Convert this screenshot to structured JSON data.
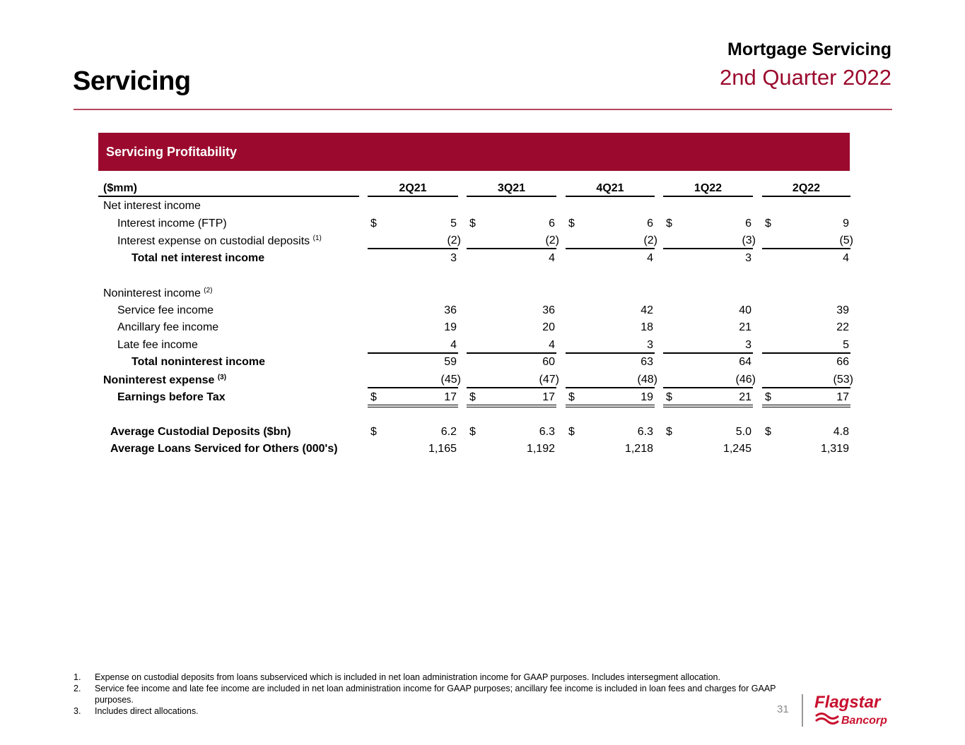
{
  "header": {
    "title": "Servicing",
    "section": "Mortgage Servicing",
    "period": "2nd Quarter 2022"
  },
  "banner": {
    "title": "Servicing Profitability"
  },
  "table": {
    "unit_label": "($mm)",
    "columns": [
      "2Q21",
      "3Q21",
      "4Q21",
      "1Q22",
      "2Q22"
    ],
    "rows": [
      {
        "label": "Net interest income",
        "indent": 0,
        "bold": false,
        "values": null
      },
      {
        "label": "Interest income (FTP)",
        "indent": 1,
        "bold": false,
        "dollar": true,
        "values": [
          "5",
          "6",
          "6",
          "6",
          "9"
        ]
      },
      {
        "label": "Interest expense on custodial deposits",
        "sup": "(1)",
        "indent": 1,
        "bold": false,
        "values": [
          "(2)",
          "(2)",
          "(2)",
          "(3)",
          "(5)"
        ],
        "underline": true
      },
      {
        "label": "Total net interest income",
        "indent": 2,
        "bold": true,
        "values": [
          "3",
          "4",
          "4",
          "3",
          "4"
        ]
      },
      {
        "label": "",
        "indent": 0,
        "values": null
      },
      {
        "label": "Noninterest income",
        "sup": "(2)",
        "indent": 0,
        "bold": false,
        "values": null
      },
      {
        "label": "Service fee income",
        "indent": 1,
        "bold": false,
        "values": [
          "36",
          "36",
          "42",
          "40",
          "39"
        ]
      },
      {
        "label": "Ancillary fee income",
        "indent": 1,
        "bold": false,
        "values": [
          "19",
          "20",
          "18",
          "21",
          "22"
        ]
      },
      {
        "label": "Late fee income",
        "indent": 1,
        "bold": false,
        "values": [
          "4",
          "4",
          "3",
          "3",
          "5"
        ],
        "underline": true
      },
      {
        "label": "Total noninterest income",
        "indent": 2,
        "bold": true,
        "values": [
          "59",
          "60",
          "63",
          "64",
          "66"
        ]
      },
      {
        "label": "Noninterest expense",
        "sup": "(3)",
        "indent": 0,
        "bold": true,
        "values": [
          "(45)",
          "(47)",
          "(48)",
          "(46)",
          "(53)"
        ],
        "underline": true
      },
      {
        "label": "Earnings before Tax",
        "indent": 1,
        "bold": true,
        "dollar": true,
        "values": [
          "17",
          "17",
          "19",
          "21",
          "17"
        ],
        "double": true
      },
      {
        "label": "",
        "indent": 0,
        "values": null
      },
      {
        "label": "Average Custodial Deposits ($bn)",
        "indent": 0.5,
        "bold": true,
        "dollar": true,
        "values": [
          "6.2",
          "6.3",
          "6.3",
          "5.0",
          "4.8"
        ]
      },
      {
        "label": "Average Loans Serviced for Others (000's)",
        "indent": 0.5,
        "bold": true,
        "values": [
          "1,165",
          "1,192",
          "1,218",
          "1,245",
          "1,319"
        ]
      }
    ],
    "currency_symbol": "$"
  },
  "footnotes": [
    {
      "num": "1.",
      "text": "Expense on custodial deposits from loans subserviced which is included in net loan administration income for GAAP purposes. Includes intersegment allocation."
    },
    {
      "num": "2.",
      "text": "Service fee income and late fee income are included in net loan administration income for GAAP purposes; ancillary fee income is included in loan fees and charges for GAAP purposes."
    },
    {
      "num": "3.",
      "text": "Includes direct allocations."
    }
  ],
  "page_number": "31",
  "logo": {
    "name": "Flagstar",
    "sub": "Bancorp"
  },
  "colors": {
    "brand": "#9b0a2e"
  }
}
